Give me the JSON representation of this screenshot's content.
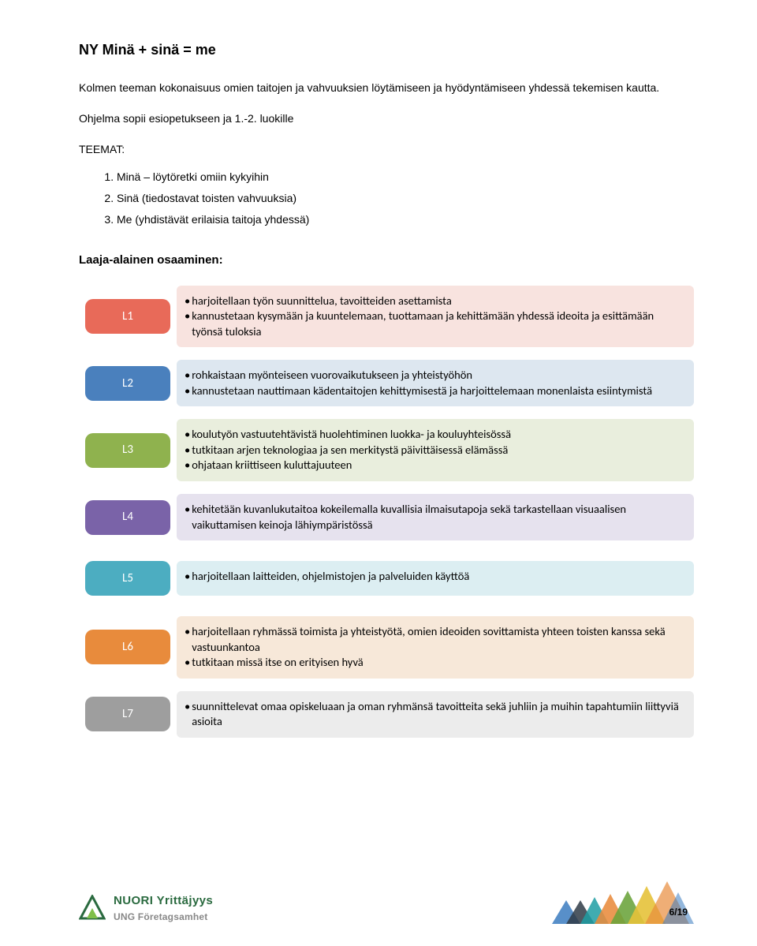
{
  "title": "NY Minä + sinä = me",
  "intro": "Kolmen teeman kokonaisuus omien taitojen ja vahvuuksien löytämiseen ja hyödyntämiseen yhdessä tekemisen kautta.",
  "sub": "Ohjelma sopii esiopetukseen ja 1.-2. luokille",
  "teemat_label": "TEEMAT:",
  "teemat": [
    "Minä – löytöretki omiin kykyihin",
    "Sinä (tiedostavat toisten vahvuuksia)",
    "Me (yhdistävät erilaisia taitoja yhdessä)"
  ],
  "section_heading": "Laaja-alainen osaaminen:",
  "rows": [
    {
      "label": "L1",
      "badge_color": "#e86a59",
      "box_color": "#f8e3df",
      "bullets": [
        "harjoitellaan työn suunnittelua, tavoitteiden asettamista",
        "kannustetaan kysymään ja kuuntelemaan, tuottamaan ja kehittämään yhdessä ideoita ja esittämään työnsä tuloksia"
      ]
    },
    {
      "label": "L2",
      "badge_color": "#4a80bd",
      "box_color": "#dde7f0",
      "bullets": [
        "rohkaistaan myönteiseen vuorovaikutukseen ja yhteistyöhön",
        "kannustetaan nauttimaan kädentaitojen kehittymisestä ja harjoittelemaan monenlaista esiintymistä"
      ]
    },
    {
      "label": "L3",
      "badge_color": "#8fb24e",
      "box_color": "#e9eedd",
      "bullets": [
        "koulutyön vastuutehtävistä huolehtiminen luokka- ja kouluyhteisössä",
        "tutkitaan arjen teknologiaa ja sen merkitystä päivittäisessä elämässä",
        "ohjataan kriittiseen kuluttajuuteen"
      ]
    },
    {
      "label": "L4",
      "badge_color": "#7a63a8",
      "box_color": "#e6e2ee",
      "bullets": [
        "kehitetään kuvanlukutaitoa kokeilemalla kuvallisia ilmaisutapoja sekä tarkastellaan visuaalisen vaikuttamisen keinoja lähiympäristössä"
      ]
    },
    {
      "label": "L5",
      "badge_color": "#4cadc1",
      "box_color": "#dceef2",
      "bullets": [
        "harjoitellaan laitteiden, ohjelmistojen ja palveluiden käyttöä"
      ],
      "gap": true
    },
    {
      "label": "L6",
      "badge_color": "#e88b3c",
      "box_color": "#f7e8d9",
      "bullets": [
        "harjoitellaan ryhmässä toimista ja yhteistyötä, omien ideoiden sovittamista yhteen toisten kanssa sekä vastuunkantoa",
        "tutkitaan missä itse on erityisen hyvä"
      ],
      "gap": true
    },
    {
      "label": "L7",
      "badge_color": "#9e9e9e",
      "box_color": "#ececec",
      "bullets": [
        "suunnittelevat omaa opiskeluaan ja oman ryhmänsä tavoitteita sekä juhliin ja muihin tapahtumiin liittyviä asioita"
      ]
    }
  ],
  "logo": {
    "line1": "NUORI Yrittäjyys",
    "line2": "UNG Företagsamhet"
  },
  "page": {
    "current": "6",
    "total": "19",
    "sep": "/"
  },
  "shape_colors": {
    "blue": "#3b7bbf",
    "dark": "#2f3b47",
    "teal": "#1f9ea3",
    "orange": "#e88b3c",
    "green": "#6aa33a",
    "yellow": "#e6c23a"
  }
}
